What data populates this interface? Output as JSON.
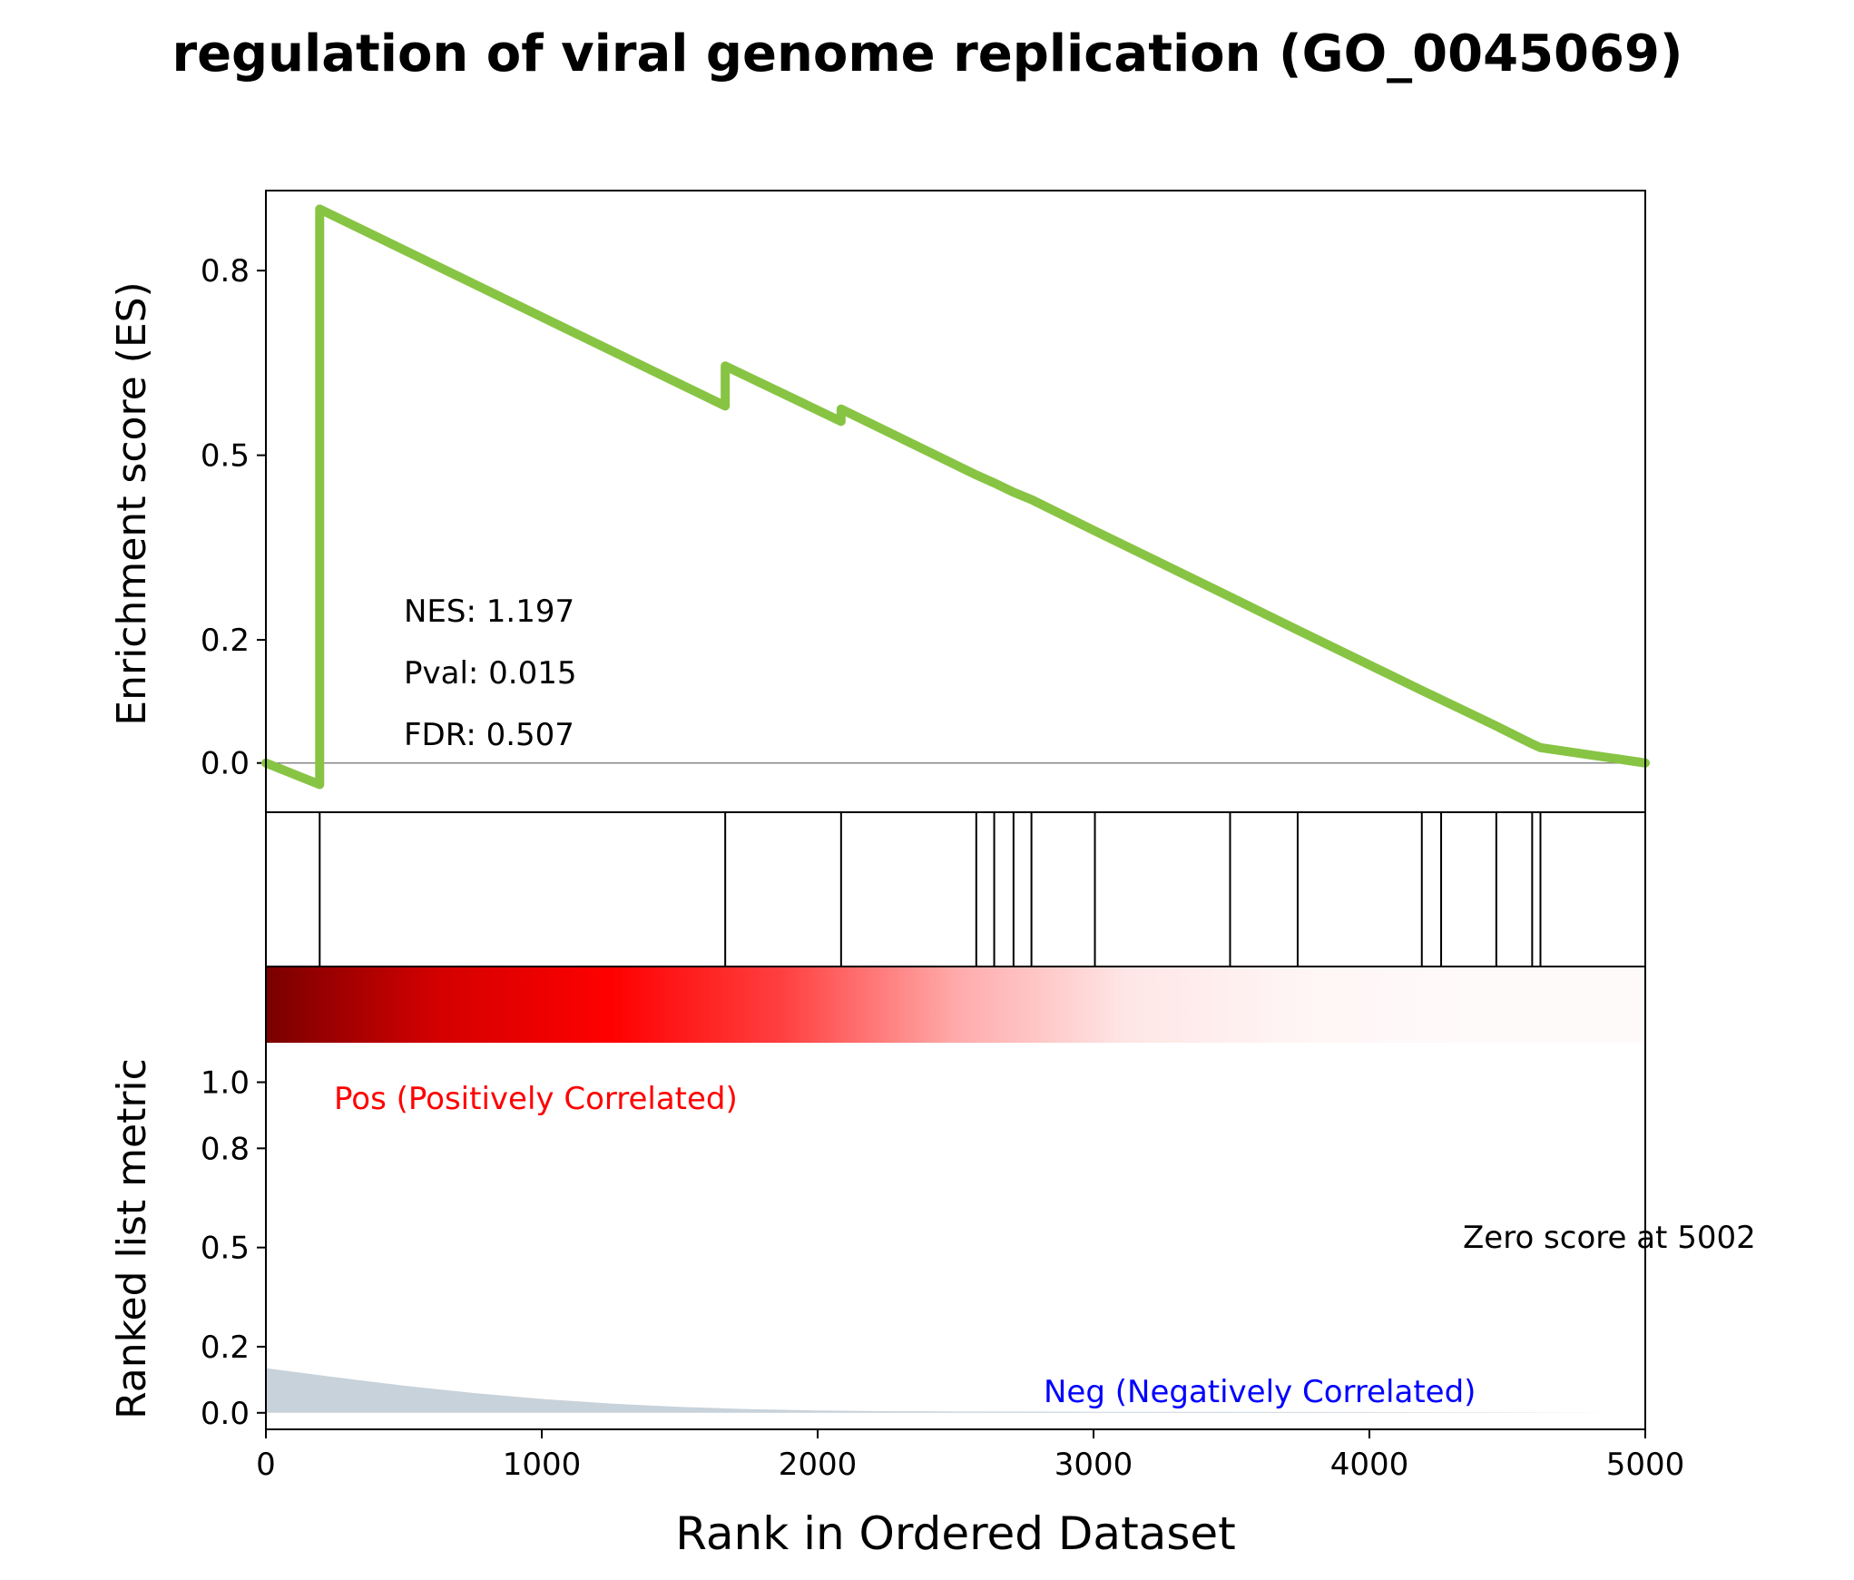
{
  "title": "regulation of viral genome replication (GO_0045069)",
  "chart_data": [
    {
      "type": "line",
      "panel": "enrichment",
      "ylabel": "Enrichment score (ES)",
      "xlim": [
        0,
        5000
      ],
      "ylim": [
        -0.08,
        0.93
      ],
      "yticks": [
        0.0,
        0.2,
        0.5,
        0.8
      ],
      "ytick_labels": [
        "0.0",
        "0.2",
        "0.5",
        "0.8"
      ],
      "zero_line": 0,
      "line_color": "#88c444",
      "annotations": [
        "NES: 1.197",
        "Pval: 0.015",
        "FDR: 0.507"
      ],
      "series": [
        {
          "x": [
            0,
            195,
            195,
            1665,
            1665,
            2085,
            2085,
            2575,
            2640,
            2710,
            2775,
            3005,
            3495,
            3740,
            4190,
            4260,
            4460,
            4590,
            4620,
            5000
          ],
          "y": [
            0.0,
            -0.035,
            0.9,
            0.58,
            0.645,
            0.555,
            0.575,
            0.468,
            0.455,
            0.44,
            0.428,
            0.377,
            0.27,
            0.216,
            0.118,
            0.103,
            0.06,
            0.031,
            0.025,
            0.0
          ]
        }
      ]
    },
    {
      "type": "hits",
      "panel": "gene-hits",
      "positions": [
        195,
        1665,
        2085,
        2575,
        2640,
        2710,
        2775,
        3005,
        3495,
        3740,
        4190,
        4260,
        4460,
        4590,
        4620
      ]
    },
    {
      "type": "area",
      "panel": "ranked-metric",
      "ylabel": "Ranked list metric",
      "xlabel": "Rank in Ordered Dataset",
      "xlim": [
        0,
        5000
      ],
      "ylim": [
        -0.05,
        1.35
      ],
      "xticks": [
        0,
        1000,
        2000,
        3000,
        4000,
        5000
      ],
      "xtick_labels": [
        "0",
        "1000",
        "2000",
        "3000",
        "4000",
        "5000"
      ],
      "yticks": [
        0.0,
        0.2,
        0.5,
        0.8,
        1.0
      ],
      "ytick_labels": [
        "0.0",
        "0.2",
        "0.5",
        "0.8",
        "1.0"
      ],
      "fill_color": "#c8d2da",
      "pos_label": "Pos (Positively Correlated)",
      "neg_label": "Neg (Negatively Correlated)",
      "zero_score_label": "Zero score at 5002",
      "x": [
        0,
        250,
        500,
        750,
        1000,
        1250,
        1500,
        1750,
        2000,
        2250,
        2500,
        3000,
        4000,
        5000
      ],
      "values": [
        0.135,
        0.108,
        0.082,
        0.06,
        0.042,
        0.028,
        0.018,
        0.011,
        0.007,
        0.005,
        0.004,
        0.003,
        0.002,
        0.0
      ],
      "heatmap_gradient": [
        "#7a0000",
        "#d40000",
        "#ff0000",
        "#ff4040",
        "#ffaaaa",
        "#ffe6e6",
        "#fff5f5",
        "#fffafa",
        "#fffafa"
      ]
    }
  ]
}
